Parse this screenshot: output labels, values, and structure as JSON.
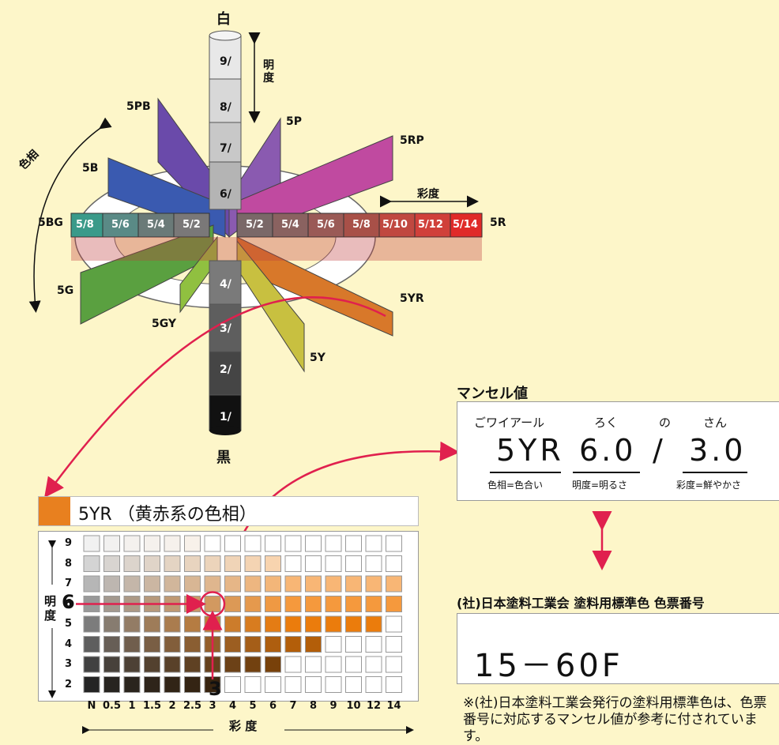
{
  "solid": {
    "white_label": "白",
    "black_label": "黒",
    "value_axis_label": "明\n度",
    "chroma_axis_label": "彩度",
    "hue_label": "色相",
    "value_steps": [
      "9/",
      "8/",
      "7/",
      "6/",
      "4/",
      "3/",
      "2/",
      "1/"
    ],
    "hues": [
      "5PB",
      "5P",
      "5RP",
      "5B",
      "5BG",
      "5R",
      "5G",
      "5YR",
      "5GY",
      "5Y"
    ],
    "horizontal_row": [
      "5/8",
      "5/6",
      "5/4",
      "5/2",
      "5/2",
      "5/4",
      "5/6",
      "5/8",
      "5/10",
      "5/12",
      "5/14"
    ]
  },
  "munsell": {
    "title": "マンセル値",
    "ruby": {
      "hue": "ごワイアール",
      "value": "ろく",
      "sep": "の",
      "chroma": "さん"
    },
    "hue": "5YR",
    "value": "6.0",
    "sep": "/",
    "chroma": "3.0",
    "cap_hue": "色相=色合い",
    "cap_value": "明度=明るさ",
    "cap_chroma": "彩度=鮮やかさ"
  },
  "standard": {
    "title": "(社)日本塗料工業会 塗料用標準色 色票番号",
    "code": "15－60F",
    "note": "※(社)日本塗料工業会発行の塗料用標準色は、色票番号に対応するマンセル値が参考に付されています。"
  },
  "hue_chart": {
    "title": "5YR （黄赤系の色相）",
    "swatch_color": "#e8801f",
    "rows": [
      "9",
      "8",
      "7",
      "6",
      "5",
      "4",
      "3",
      "2"
    ],
    "cols": [
      "N",
      "0.5",
      "1",
      "1.5",
      "2",
      "2.5",
      "3",
      "4",
      "5",
      "6",
      "7",
      "8",
      "9",
      "10",
      "12",
      "14"
    ],
    "value_label": "明\n度",
    "chroma_label": "彩 度",
    "highlight_value": "6",
    "highlight_chroma": "3"
  }
}
